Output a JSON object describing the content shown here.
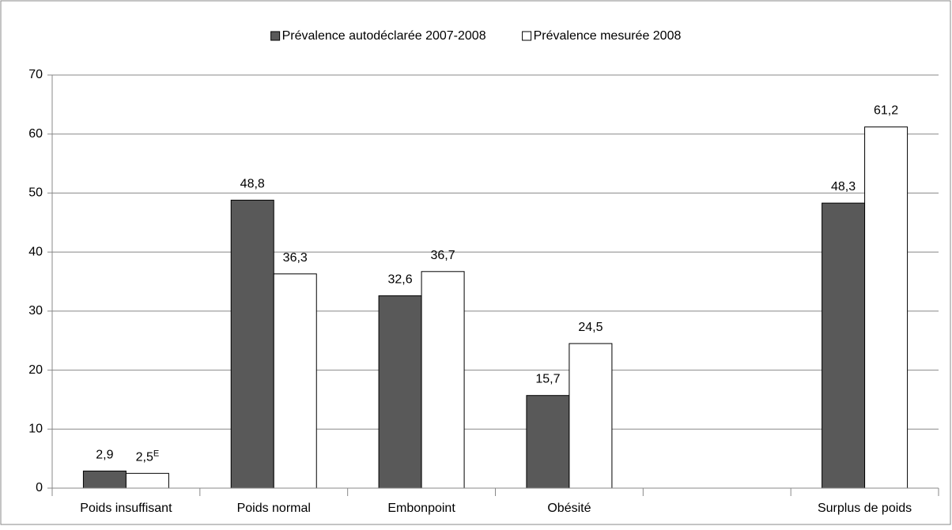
{
  "chart_data": {
    "type": "bar",
    "categories": [
      "Poids insuffisant",
      "Poids normal",
      "Embonpoint",
      "Obésité",
      null,
      "Surplus de poids"
    ],
    "series": [
      {
        "name": "Prévalence autodéclarée 2007-2008",
        "color": "#595959",
        "values": [
          2.9,
          48.8,
          32.6,
          15.7,
          null,
          48.3
        ],
        "value_labels": [
          "2,9",
          "48,8",
          "32,6",
          "15,7",
          null,
          "48,3"
        ]
      },
      {
        "name": "Prévalence mesurée 2008",
        "color": "#ffffff",
        "values": [
          2.5,
          36.3,
          36.7,
          24.5,
          null,
          61.2
        ],
        "value_labels": [
          "2,5",
          "36,3",
          "36,7",
          "24,5",
          null,
          "61,2"
        ],
        "value_label_flags": [
          "E",
          null,
          null,
          null,
          null,
          null
        ]
      }
    ],
    "ylim": [
      0,
      70
    ],
    "yticks": [
      0,
      10,
      20,
      30,
      40,
      50,
      60,
      70
    ],
    "grid": true,
    "legend": "top"
  }
}
